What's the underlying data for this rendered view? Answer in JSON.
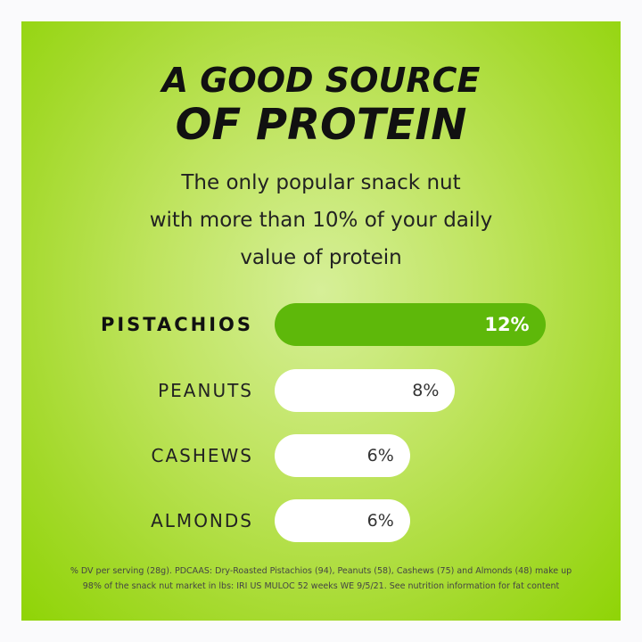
{
  "title_line1": "A GOOD SOURCE",
  "title_line2": "OF PROTEIN",
  "subtitle_lines": [
    "The only popular snack nut",
    "with more than 10% of your daily",
    "value of protein"
  ],
  "colors": {
    "background": "#a3d92a",
    "highlight_bar": "#5eb80a",
    "bar": "#ffffff"
  },
  "chart_data": {
    "type": "bar",
    "orientation": "horizontal",
    "categories": [
      "PISTACHIOS",
      "PEANUTS",
      "CASHEWS",
      "ALMONDS"
    ],
    "values": [
      12,
      8,
      6,
      6
    ],
    "value_labels": [
      "12%",
      "8%",
      "6%",
      "6%"
    ],
    "highlight": "PISTACHIOS",
    "unit": "% DV"
  },
  "footnote_lines": [
    "% DV per serving (28g). PDCAAS: Dry-Roasted Pistachios (94), Peanuts (58), Cashews (75) and Almonds (48) make up",
    "98% of the snack nut market in lbs: IRI US MULOC 52 weeks WE 9/5/21. See nutrition information for fat content"
  ]
}
